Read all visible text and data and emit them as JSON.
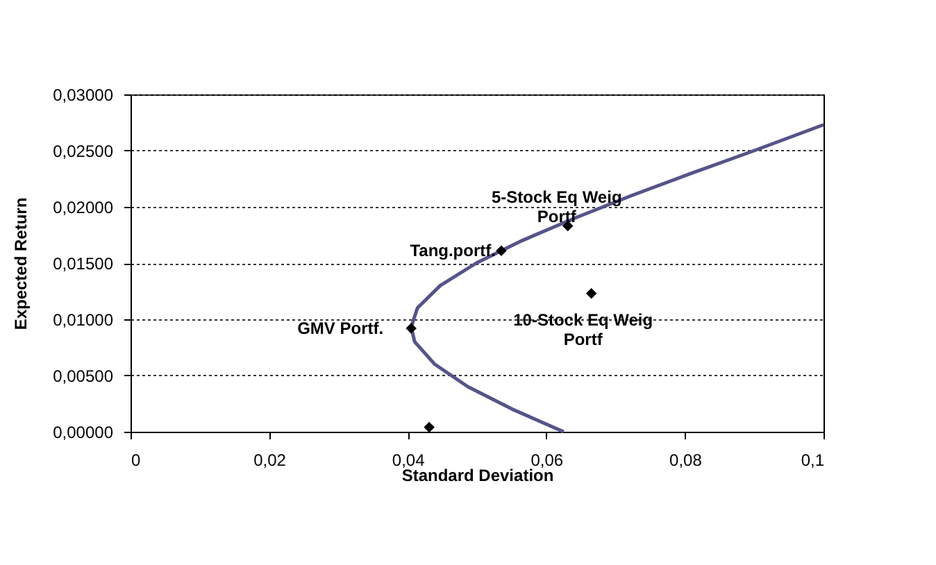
{
  "chart_data": {
    "type": "scatter",
    "xlabel": "Standard Deviation",
    "ylabel": "Expected Return",
    "xlim": [
      0,
      0.1
    ],
    "xticks": [
      0,
      {
        "value": 0.02,
        "label": "0,02"
      },
      {
        "value": 0.04,
        "label": "0,04"
      },
      {
        "value": 0.06,
        "label": "0,06"
      },
      {
        "value": 0.08,
        "label": "0,08"
      },
      {
        "value": 0.1,
        "label": "0,1"
      }
    ],
    "ylim": [
      0,
      0.03
    ],
    "yticks": [
      {
        "value": 0,
        "label": "0,00000"
      },
      {
        "value": 0.005,
        "label": "0,00500"
      },
      {
        "value": 0.01,
        "label": "0,01000"
      },
      {
        "value": 0.015,
        "label": "0,01500"
      },
      {
        "value": 0.02,
        "label": "0,02000"
      },
      {
        "value": 0.025,
        "label": "0,02500"
      },
      {
        "value": 0.03,
        "label": "0,03000"
      }
    ],
    "grid": "y",
    "series": [
      {
        "type": "line",
        "color": "#55548a",
        "marker": "none",
        "line_style": "solid",
        "x": [
          0.0625,
          0.0551,
          0.0487,
          0.0439,
          0.041,
          0.0405,
          0.0414,
          0.0447,
          0.0499,
          0.0565,
          0.0641,
          0.0723,
          0.081,
          0.09,
          0.1
        ],
        "values": [
          0,
          0.002,
          0.004,
          0.006,
          0.008,
          0.0093,
          0.011,
          0.013,
          0.015,
          0.017,
          0.019,
          0.021,
          0.023,
          0.025,
          0.0273
        ]
      },
      {
        "color": "#000000",
        "marker": "diamond",
        "x": [
          0.0535,
          0.0631,
          0.0405,
          0.0665,
          0.0431
        ],
        "values": [
          0.0161,
          0.0183,
          0.0092,
          0.0123,
          0.0004
        ]
      }
    ],
    "annotations": [
      {
        "text": "Tang.portf.",
        "x": 0.0535,
        "y": 0.0161
      },
      {
        "text": "5-Stock Eq Weig\nPortf",
        "x": 0.0631,
        "y": 0.0183
      },
      {
        "text": "GMV Portf.",
        "x": 0.0405,
        "y": 0.0092
      },
      {
        "text": "10-Stock Eq Weig\nPortf",
        "x": 0.0665,
        "y": 0.0123
      }
    ]
  }
}
